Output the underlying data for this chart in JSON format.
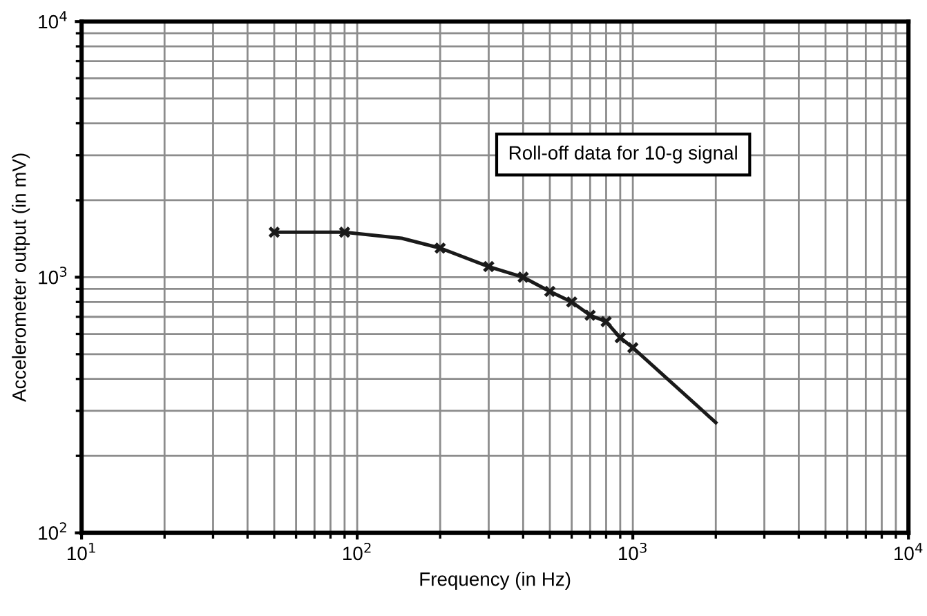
{
  "chart_data": {
    "type": "line",
    "xlabel": "Frequency (in Hz)",
    "ylabel": "Accelerometer output (in mV)",
    "log": "xy",
    "grid": true,
    "xlim": [
      10,
      10000
    ],
    "ylim": [
      100,
      10000
    ],
    "xticks": [
      {
        "value": 10,
        "label": "10$^{1}$"
      },
      {
        "value": 100,
        "label": "10$^{2}$"
      },
      {
        "value": 1000,
        "label": "10$^{3}$"
      },
      {
        "value": 10000,
        "label": "10$^{4}$"
      }
    ],
    "yticks": [
      {
        "value": 100,
        "label": "10$^{2}$"
      },
      {
        "value": 1000,
        "label": "10$^{3}$"
      },
      {
        "value": 10000,
        "label": "10$^{4}$"
      }
    ],
    "annotations": [
      "Roll-off data for 10-g signal"
    ],
    "series": [
      {
        "color": "#1a1a1a",
        "marker": "none",
        "x": [
          50,
          90,
          145,
          200,
          300,
          400,
          500,
          600,
          700,
          800,
          900,
          1000,
          2000
        ],
        "values": [
          1500,
          1500,
          1420,
          1300,
          1100,
          1000,
          880,
          800,
          710,
          670,
          580,
          530,
          270
        ]
      },
      {
        "type": "scatter",
        "color": "#1a1a1a",
        "marker": "cross",
        "x": [
          50,
          90,
          200,
          300,
          400,
          500,
          600,
          700,
          800,
          900,
          1000
        ],
        "values": [
          1500,
          1500,
          1300,
          1100,
          1000,
          880,
          800,
          710,
          670,
          580,
          530
        ]
      }
    ]
  }
}
